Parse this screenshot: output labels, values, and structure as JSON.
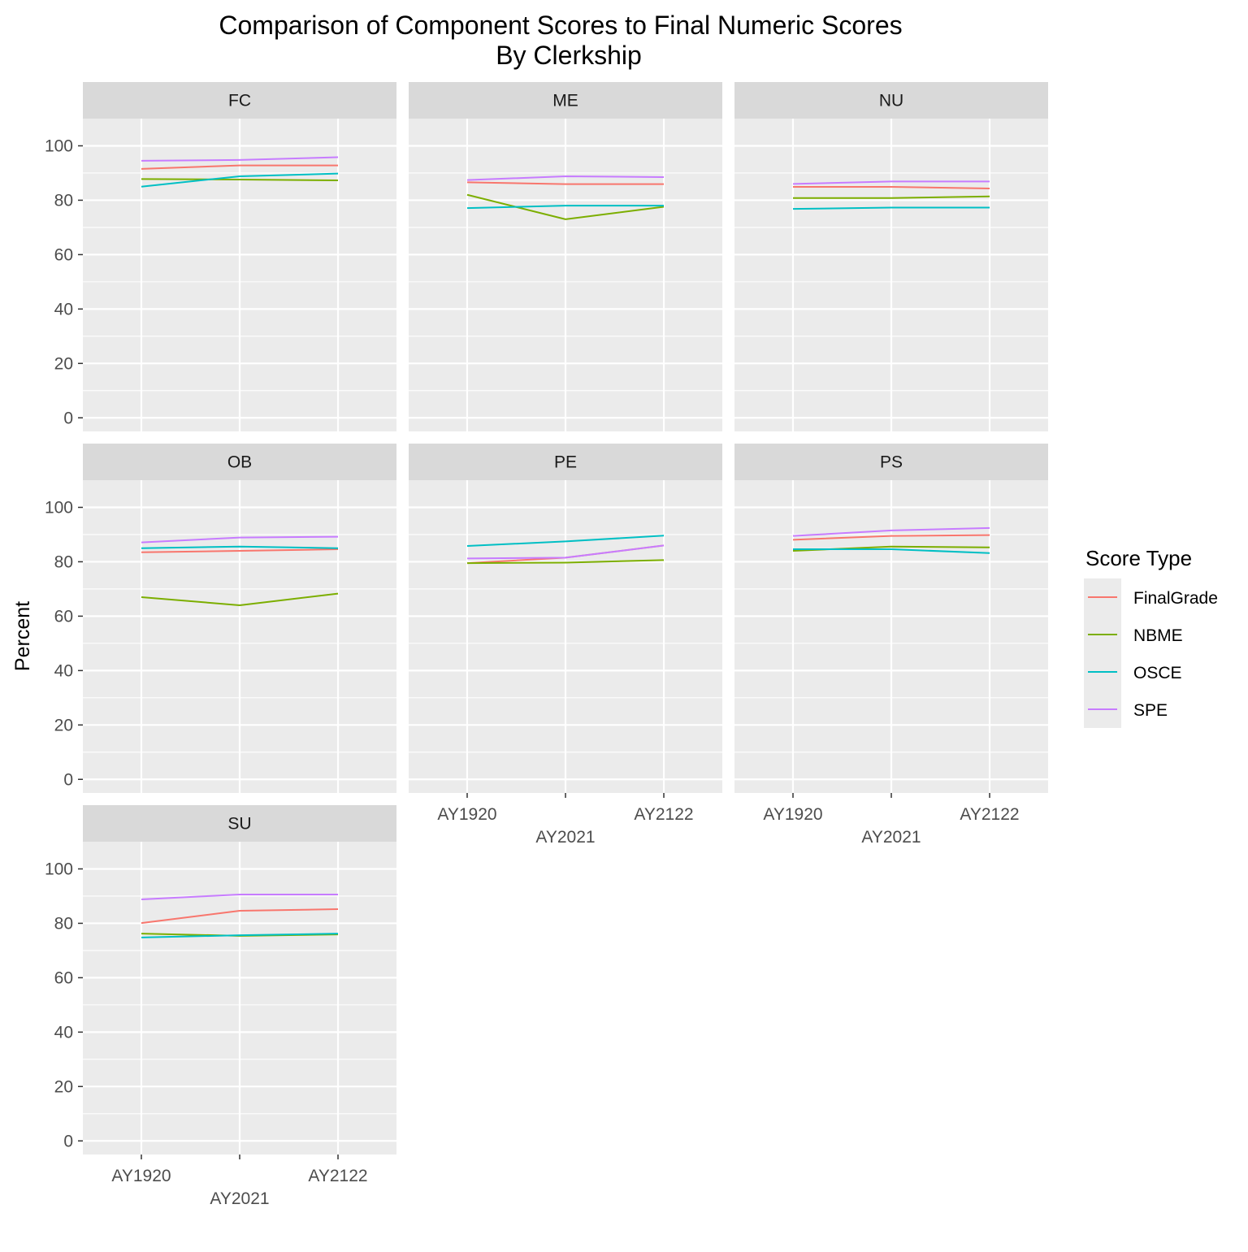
{
  "chart_data": {
    "type": "line",
    "title": "Comparison of Component Scores to Final Numeric Scores",
    "subtitle": "By Clerkship",
    "xlabel": "",
    "ylabel": "Percent",
    "categories": [
      "AY1920",
      "AY2021",
      "AY2122"
    ],
    "ylim": [
      -5,
      110
    ],
    "yticks": [
      0,
      20,
      40,
      60,
      80,
      100
    ],
    "grid": true,
    "legend": {
      "title": "Score Type",
      "position": "right",
      "entries": [
        "FinalGrade",
        "NBME",
        "OSCE",
        "SPE"
      ]
    },
    "colors": {
      "FinalGrade": "#F8766D",
      "NBME": "#7CAE00",
      "OSCE": "#00BFC4",
      "SPE": "#C77CFF"
    },
    "panels": [
      {
        "name": "FC",
        "series": [
          {
            "name": "FinalGrade",
            "values": [
              91.5,
              92.8,
              92.8
            ]
          },
          {
            "name": "NBME",
            "values": [
              87.8,
              87.6,
              87.3
            ]
          },
          {
            "name": "OSCE",
            "values": [
              85.0,
              88.8,
              89.8
            ]
          },
          {
            "name": "SPE",
            "values": [
              94.5,
              94.8,
              95.8
            ]
          }
        ]
      },
      {
        "name": "ME",
        "series": [
          {
            "name": "FinalGrade",
            "values": [
              86.6,
              85.9,
              85.9
            ]
          },
          {
            "name": "NBME",
            "values": [
              82.0,
              73.0,
              77.6
            ]
          },
          {
            "name": "OSCE",
            "values": [
              77.1,
              78.0,
              78.0
            ]
          },
          {
            "name": "SPE",
            "values": [
              87.4,
              88.8,
              88.5
            ]
          }
        ]
      },
      {
        "name": "NU",
        "series": [
          {
            "name": "FinalGrade",
            "values": [
              84.9,
              84.9,
              84.3
            ]
          },
          {
            "name": "NBME",
            "values": [
              80.8,
              80.8,
              81.4
            ]
          },
          {
            "name": "OSCE",
            "values": [
              76.8,
              77.3,
              77.3
            ]
          },
          {
            "name": "SPE",
            "values": [
              86.0,
              86.9,
              86.9
            ]
          }
        ]
      },
      {
        "name": "OB",
        "series": [
          {
            "name": "FinalGrade",
            "values": [
              83.5,
              84.0,
              84.6
            ]
          },
          {
            "name": "NBME",
            "values": [
              67.0,
              64.0,
              68.3
            ]
          },
          {
            "name": "OSCE",
            "values": [
              85.0,
              85.6,
              85.0
            ]
          },
          {
            "name": "SPE",
            "values": [
              87.1,
              88.9,
              89.2
            ]
          }
        ]
      },
      {
        "name": "PE",
        "series": [
          {
            "name": "FinalGrade",
            "values": [
              79.5,
              81.5,
              86.0
            ]
          },
          {
            "name": "NBME",
            "values": [
              79.5,
              79.7,
              80.6
            ]
          },
          {
            "name": "OSCE",
            "values": [
              85.8,
              87.5,
              89.6
            ]
          },
          {
            "name": "SPE",
            "values": [
              81.2,
              81.5,
              86.0
            ]
          }
        ]
      },
      {
        "name": "PS",
        "series": [
          {
            "name": "FinalGrade",
            "values": [
              88.1,
              89.5,
              89.8
            ]
          },
          {
            "name": "NBME",
            "values": [
              84.0,
              85.6,
              85.3
            ]
          },
          {
            "name": "OSCE",
            "values": [
              84.6,
              84.6,
              83.2
            ]
          },
          {
            "name": "SPE",
            "values": [
              89.5,
              91.5,
              92.4
            ]
          }
        ]
      },
      {
        "name": "SU",
        "series": [
          {
            "name": "FinalGrade",
            "values": [
              80.1,
              84.6,
              85.2
            ]
          },
          {
            "name": "NBME",
            "values": [
              76.2,
              75.4,
              75.9
            ]
          },
          {
            "name": "OSCE",
            "values": [
              74.8,
              75.6,
              76.2
            ]
          },
          {
            "name": "SPE",
            "values": [
              88.8,
              90.6,
              90.6
            ]
          }
        ]
      }
    ]
  }
}
